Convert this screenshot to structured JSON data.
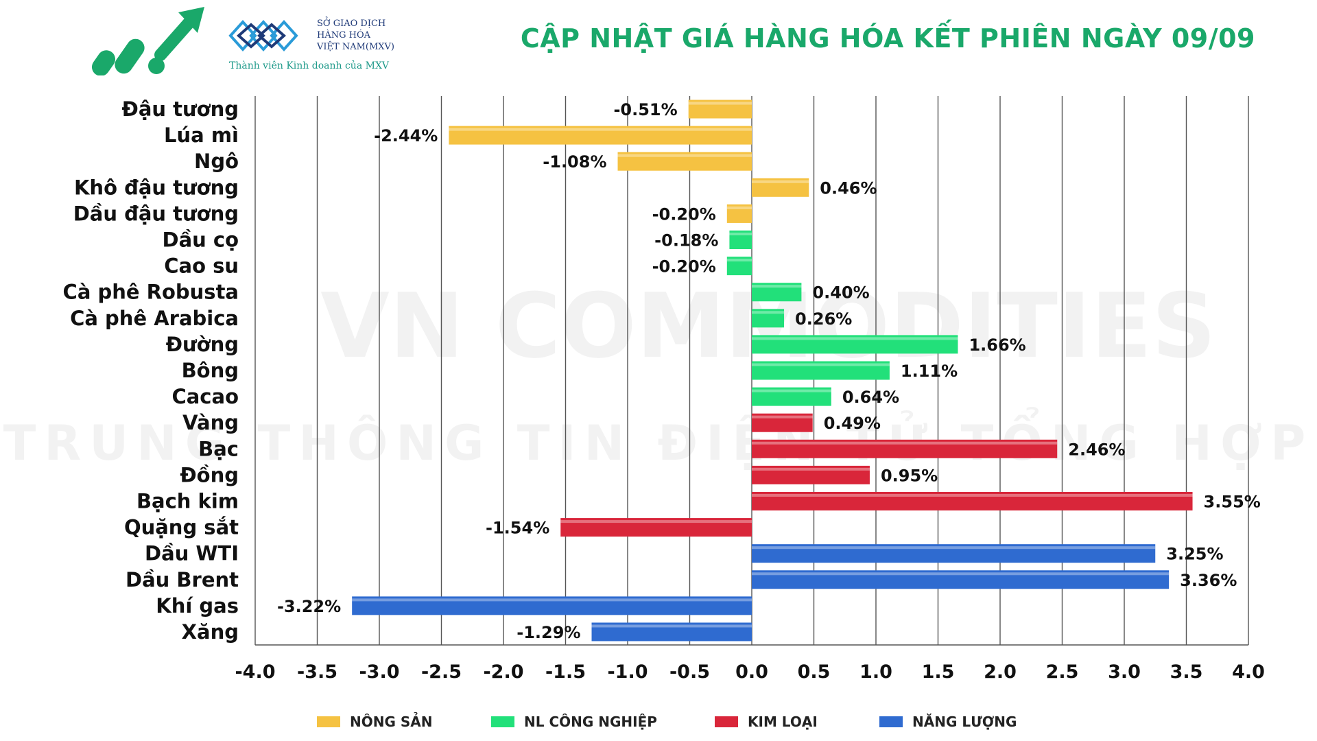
{
  "header": {
    "title": "CẬP NHẬT GIÁ HÀNG HÓA KẾT PHIÊN NGÀY 09/09",
    "mxv_name": "SỞ GIAO DỊCH\nHÀNG HÓA\nVIỆT NAM(MXV)",
    "mxv_tm": "™",
    "mxv_tagline": "Thành viên Kinh doanh của MXV"
  },
  "watermark": {
    "line1": "VN COMMODITIES",
    "line2": "TRUNG THÔNG TIN ĐIỆN TỬ TỔNG HỢP"
  },
  "colors": {
    "Nông sản": "#f5c242",
    "NL công nghiệp": "#22e07a",
    "Kim loại": "#d9263a",
    "Năng lượng": "#2f6bd0",
    "title": "#1aa86a"
  },
  "legend": [
    {
      "label": "NÔNG SẢN",
      "group": "Nông sản"
    },
    {
      "label": "NL CÔNG NGHIỆP",
      "group": "NL công nghiệp"
    },
    {
      "label": "KIM LOẠI",
      "group": "Kim loại"
    },
    {
      "label": "NĂNG LƯỢNG",
      "group": "Năng lượng"
    }
  ],
  "chart_data": {
    "type": "bar",
    "orientation": "horizontal",
    "title": "",
    "xlabel": "",
    "ylabel": "",
    "xlim": [
      -4.0,
      4.0
    ],
    "xticks": [
      "-4.0",
      "-3.5",
      "-3.0",
      "-2.5",
      "-2.0",
      "-1.5",
      "-1.0",
      "-0.5",
      "0.0",
      "0.5",
      "1.0",
      "1.5",
      "2.0",
      "2.5",
      "3.0",
      "3.5",
      "4.0"
    ],
    "grid": "vertical",
    "legend_position": "bottom",
    "categories": [
      "Đậu tương",
      "Lúa mì",
      "Ngô",
      "Khô đậu tương",
      "Dầu đậu tương",
      "Dầu cọ",
      "Cao su",
      "Cà phê Robusta",
      "Cà phê Arabica",
      "Đường",
      "Bông",
      "Cacao",
      "Vàng",
      "Bạc",
      "Đồng",
      "Bạch kim",
      "Quặng sắt",
      "Dầu WTI",
      "Dầu Brent",
      "Khí gas",
      "Xăng"
    ],
    "values": [
      -0.51,
      -2.44,
      -1.08,
      0.46,
      -0.2,
      -0.18,
      -0.2,
      0.4,
      0.26,
      1.66,
      1.11,
      0.64,
      0.49,
      2.46,
      0.95,
      3.55,
      -1.54,
      3.25,
      3.36,
      -3.22,
      -1.29
    ],
    "labels": [
      "-0.51%",
      "-2.44%",
      "-1.08%",
      "0.46%",
      "-0.20%",
      "-0.18%",
      "-0.20%",
      "0.40%",
      "0.26%",
      "1.66%",
      "1.11%",
      "0.64%",
      "0.49%",
      "2.46%",
      "0.95%",
      "3.55%",
      "-1.54%",
      "3.25%",
      "3.36%",
      "-3.22%",
      "-1.29%"
    ],
    "groups": [
      "Nông sản",
      "Nông sản",
      "Nông sản",
      "Nông sản",
      "Nông sản",
      "NL công nghiệp",
      "NL công nghiệp",
      "NL công nghiệp",
      "NL công nghiệp",
      "NL công nghiệp",
      "NL công nghiệp",
      "NL công nghiệp",
      "Kim loại",
      "Kim loại",
      "Kim loại",
      "Kim loại",
      "Kim loại",
      "Năng lượng",
      "Năng lượng",
      "Năng lượng",
      "Năng lượng"
    ]
  }
}
